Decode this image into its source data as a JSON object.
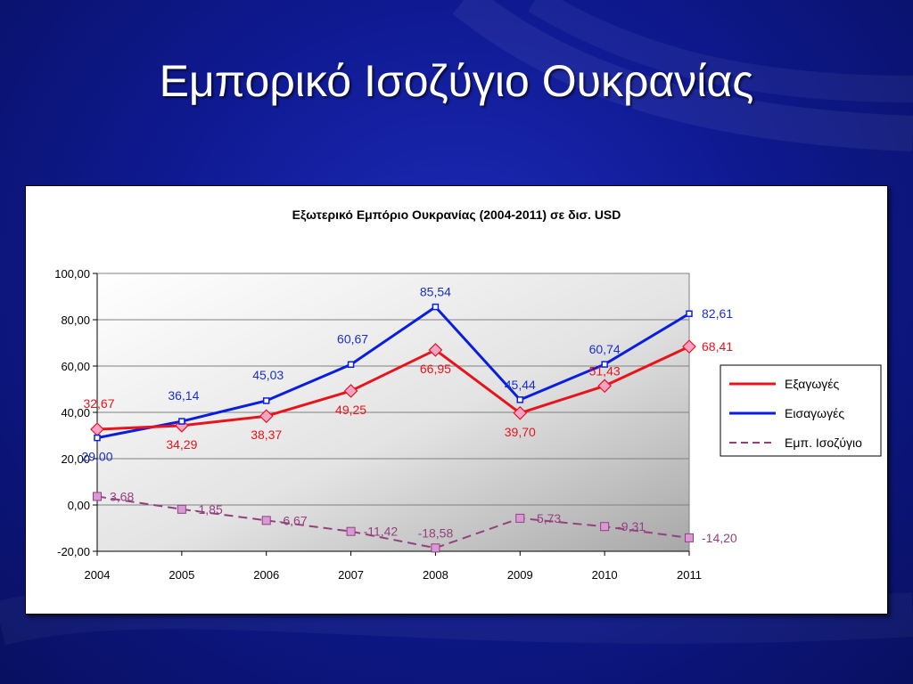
{
  "slide": {
    "title": "Εμπορικό Ισοζύγιο Ουκρανίας"
  },
  "colors": {
    "exports": "#e8141c",
    "imports": "#0a1ee0",
    "balance": "#94407f",
    "exports_marker_fill": "#f7a3c7",
    "balance_marker_fill": "#d79ad6"
  },
  "chart_data": {
    "type": "line",
    "title": "Εξωτερικό Εμπόριο Ουκρανίας (2004-2011) σε δισ. USD",
    "xlabel": "",
    "ylabel": "",
    "categories": [
      "2004",
      "2005",
      "2006",
      "2007",
      "2008",
      "2009",
      "2010",
      "2011"
    ],
    "ylim": [
      -20,
      100
    ],
    "y_ticks": [
      {
        "value": 100,
        "label": "100,00"
      },
      {
        "value": 80,
        "label": "80,00"
      },
      {
        "value": 60,
        "label": "60,00"
      },
      {
        "value": 40,
        "label": "40,00"
      },
      {
        "value": 20,
        "label": "20,00"
      },
      {
        "value": 0,
        "label": "0,00"
      },
      {
        "value": -20,
        "label": "-20,00"
      }
    ],
    "grid": true,
    "legend_position": "right",
    "series": [
      {
        "name": "Εξαγωγές",
        "values": [
          32.67,
          34.29,
          38.37,
          49.25,
          66.95,
          39.7,
          51.43,
          68.41
        ],
        "labels": [
          "32,67",
          "34,29",
          "38,37",
          "49,25",
          "66,95",
          "39,70",
          "51,43",
          "68,41"
        ]
      },
      {
        "name": "Εισαγωγές",
        "values": [
          29.0,
          36.14,
          45.03,
          60.67,
          85.54,
          45.44,
          60.74,
          82.61
        ],
        "labels": [
          "29,00",
          "36,14",
          "45,03",
          "60,67",
          "85,54",
          "45,44",
          "60,74",
          "82,61"
        ]
      },
      {
        "name": "Εμπ. Ισοζύγιο",
        "values": [
          3.68,
          -1.85,
          -6.67,
          -11.42,
          -18.58,
          -5.73,
          -9.31,
          -14.2
        ],
        "labels": [
          "3,68",
          "-1,85",
          "-6,67",
          "-11,42",
          "-18,58",
          "-5,73",
          "-9,31",
          "-14,20"
        ]
      }
    ]
  }
}
